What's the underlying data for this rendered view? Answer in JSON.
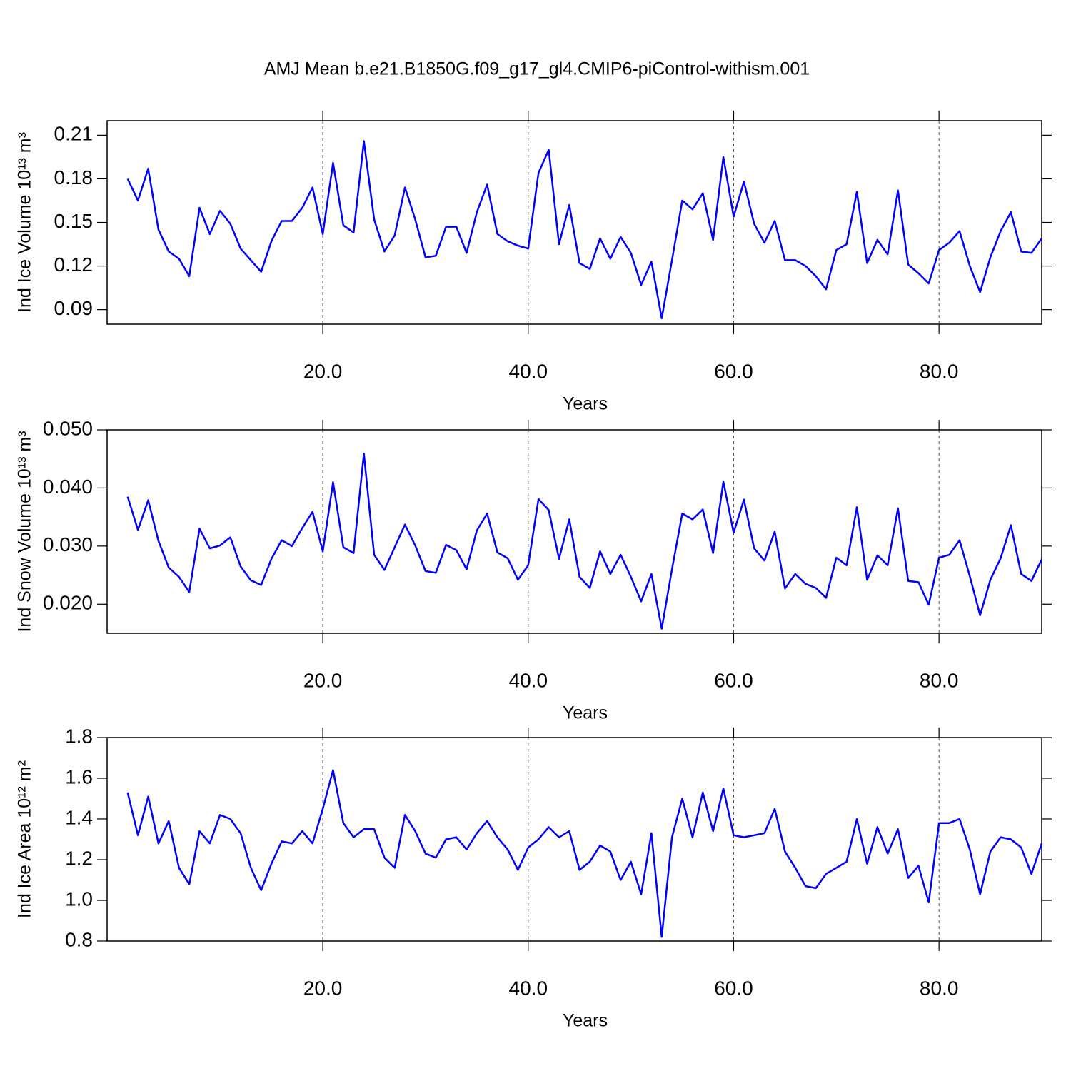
{
  "title": "AMJ Mean b.e21.B1850G.f09_g17_gl4.CMIP6-piControl-withism.001",
  "chart_data": [
    {
      "type": "line",
      "ylabel": "Ind Ice Volume 10¹³ m³",
      "xlabel": "Years",
      "x": [
        1,
        2,
        3,
        4,
        5,
        6,
        7,
        8,
        9,
        10,
        11,
        12,
        13,
        14,
        15,
        16,
        17,
        18,
        19,
        20,
        21,
        22,
        23,
        24,
        25,
        26,
        27,
        28,
        29,
        30,
        31,
        32,
        33,
        34,
        35,
        36,
        37,
        38,
        39,
        40,
        41,
        42,
        43,
        44,
        45,
        46,
        47,
        48,
        49,
        50,
        51,
        52,
        53,
        54,
        55,
        56,
        57,
        58,
        59,
        60,
        61,
        62,
        63,
        64,
        65,
        66,
        67,
        68,
        69,
        70,
        71,
        72,
        73,
        74,
        75,
        76,
        77,
        78,
        79,
        80,
        81,
        82,
        83,
        84,
        85,
        86,
        87,
        88,
        89,
        90
      ],
      "color": "#0000ff",
      "values": [
        0.18,
        0.165,
        0.187,
        0.145,
        0.13,
        0.125,
        0.113,
        0.16,
        0.142,
        0.158,
        0.149,
        0.132,
        0.124,
        0.116,
        0.137,
        0.151,
        0.151,
        0.16,
        0.174,
        0.142,
        0.191,
        0.148,
        0.143,
        0.206,
        0.152,
        0.13,
        0.141,
        0.174,
        0.152,
        0.126,
        0.127,
        0.147,
        0.147,
        0.129,
        0.157,
        0.176,
        0.142,
        0.137,
        0.134,
        0.132,
        0.184,
        0.2,
        0.135,
        0.162,
        0.122,
        0.118,
        0.139,
        0.125,
        0.14,
        0.129,
        0.107,
        0.123,
        0.084,
        0.124,
        0.165,
        0.159,
        0.17,
        0.138,
        0.195,
        0.154,
        0.178,
        0.149,
        0.136,
        0.151,
        0.124,
        0.124,
        0.12,
        0.113,
        0.104,
        0.131,
        0.135,
        0.171,
        0.122,
        0.138,
        0.128,
        0.172,
        0.121,
        0.115,
        0.108,
        0.131,
        0.136,
        0.144,
        0.12,
        0.102,
        0.126,
        0.144,
        0.157,
        0.13,
        0.129,
        0.139
      ],
      "xlim": [
        -1,
        90
      ],
      "ylim": [
        0.08,
        0.22
      ],
      "xticks": [
        {
          "value": 20,
          "label": "20.0"
        },
        {
          "value": 40,
          "label": "40.0"
        },
        {
          "value": 60,
          "label": "60.0"
        },
        {
          "value": 80,
          "label": "80.0"
        }
      ],
      "yticks": [
        0.09,
        0.12,
        0.15,
        0.18,
        0.21
      ],
      "grid": "x"
    },
    {
      "type": "line",
      "ylabel": "Ind Snow Volume 10¹³ m³",
      "xlabel": "Years",
      "x": [
        1,
        2,
        3,
        4,
        5,
        6,
        7,
        8,
        9,
        10,
        11,
        12,
        13,
        14,
        15,
        16,
        17,
        18,
        19,
        20,
        21,
        22,
        23,
        24,
        25,
        26,
        27,
        28,
        29,
        30,
        31,
        32,
        33,
        34,
        35,
        36,
        37,
        38,
        39,
        40,
        41,
        42,
        43,
        44,
        45,
        46,
        47,
        48,
        49,
        50,
        51,
        52,
        53,
        54,
        55,
        56,
        57,
        58,
        59,
        60,
        61,
        62,
        63,
        64,
        65,
        66,
        67,
        68,
        69,
        70,
        71,
        72,
        73,
        74,
        75,
        76,
        77,
        78,
        79,
        80,
        81,
        82,
        83,
        84,
        85,
        86,
        87,
        88,
        89,
        90
      ],
      "color": "#0000ff",
      "values": [
        0.0385,
        0.0328,
        0.0379,
        0.0309,
        0.0263,
        0.0247,
        0.0221,
        0.033,
        0.0296,
        0.0301,
        0.0315,
        0.0265,
        0.0241,
        0.0233,
        0.0278,
        0.031,
        0.03,
        0.0331,
        0.0359,
        0.0291,
        0.041,
        0.0298,
        0.0288,
        0.0459,
        0.0285,
        0.0259,
        0.0298,
        0.0337,
        0.0301,
        0.0257,
        0.0254,
        0.0302,
        0.0293,
        0.026,
        0.0327,
        0.0356,
        0.0289,
        0.0279,
        0.0242,
        0.0267,
        0.0381,
        0.0362,
        0.0278,
        0.0346,
        0.0247,
        0.0228,
        0.0291,
        0.0252,
        0.0285,
        0.0247,
        0.0205,
        0.0252,
        0.0158,
        0.026,
        0.0356,
        0.0346,
        0.0363,
        0.0288,
        0.0411,
        0.0323,
        0.038,
        0.0296,
        0.0275,
        0.0325,
        0.0227,
        0.0252,
        0.0235,
        0.0228,
        0.0211,
        0.028,
        0.0267,
        0.0367,
        0.0242,
        0.0284,
        0.0267,
        0.0365,
        0.024,
        0.0238,
        0.0199,
        0.028,
        0.0285,
        0.031,
        0.0248,
        0.0181,
        0.0242,
        0.0279,
        0.0336,
        0.0252,
        0.024,
        0.0277
      ],
      "xlim": [
        -1,
        90
      ],
      "ylim": [
        0.015,
        0.05
      ],
      "xticks": [
        {
          "value": 20,
          "label": "20.0"
        },
        {
          "value": 40,
          "label": "40.0"
        },
        {
          "value": 60,
          "label": "60.0"
        },
        {
          "value": 80,
          "label": "80.0"
        }
      ],
      "yticks": [
        {
          "value": 0.02,
          "label": "0.020"
        },
        {
          "value": 0.03,
          "label": "0.030"
        },
        {
          "value": 0.04,
          "label": "0.040"
        },
        {
          "value": 0.05,
          "label": "0.050"
        }
      ],
      "grid": "x"
    },
    {
      "type": "line",
      "ylabel": "Ind Ice Area 10¹² m²",
      "xlabel": "Years",
      "x": [
        1,
        2,
        3,
        4,
        5,
        6,
        7,
        8,
        9,
        10,
        11,
        12,
        13,
        14,
        15,
        16,
        17,
        18,
        19,
        20,
        21,
        22,
        23,
        24,
        25,
        26,
        27,
        28,
        29,
        30,
        31,
        32,
        33,
        34,
        35,
        36,
        37,
        38,
        39,
        40,
        41,
        42,
        43,
        44,
        45,
        46,
        47,
        48,
        49,
        50,
        51,
        52,
        53,
        54,
        55,
        56,
        57,
        58,
        59,
        60,
        61,
        62,
        63,
        64,
        65,
        66,
        67,
        68,
        69,
        70,
        71,
        72,
        73,
        74,
        75,
        76,
        77,
        78,
        79,
        80,
        81,
        82,
        83,
        84,
        85,
        86,
        87,
        88,
        89,
        90
      ],
      "color": "#0000ff",
      "values": [
        1.53,
        1.32,
        1.51,
        1.28,
        1.39,
        1.16,
        1.08,
        1.34,
        1.28,
        1.42,
        1.4,
        1.33,
        1.16,
        1.05,
        1.18,
        1.29,
        1.28,
        1.34,
        1.28,
        1.45,
        1.64,
        1.38,
        1.31,
        1.35,
        1.35,
        1.21,
        1.16,
        1.42,
        1.34,
        1.23,
        1.21,
        1.3,
        1.31,
        1.25,
        1.33,
        1.39,
        1.31,
        1.25,
        1.15,
        1.26,
        1.3,
        1.36,
        1.31,
        1.34,
        1.15,
        1.19,
        1.27,
        1.24,
        1.1,
        1.19,
        1.03,
        1.33,
        0.82,
        1.31,
        1.5,
        1.31,
        1.53,
        1.34,
        1.55,
        1.32,
        1.31,
        1.32,
        1.33,
        1.45,
        1.24,
        1.16,
        1.07,
        1.06,
        1.13,
        1.16,
        1.19,
        1.4,
        1.18,
        1.36,
        1.23,
        1.35,
        1.11,
        1.17,
        0.99,
        1.38,
        1.38,
        1.4,
        1.25,
        1.03,
        1.24,
        1.31,
        1.3,
        1.26,
        1.13,
        1.28
      ],
      "xlim": [
        -1,
        90
      ],
      "ylim": [
        0.8,
        1.8
      ],
      "xticks": [
        {
          "value": 20,
          "label": "20.0"
        },
        {
          "value": 40,
          "label": "40.0"
        },
        {
          "value": 60,
          "label": "60.0"
        },
        {
          "value": 80,
          "label": "80.0"
        }
      ],
      "yticks": [
        0.8,
        {
          "value": 1,
          "label": "1.0"
        },
        1.2,
        1.4,
        1.6,
        1.8
      ],
      "grid": "x"
    }
  ]
}
